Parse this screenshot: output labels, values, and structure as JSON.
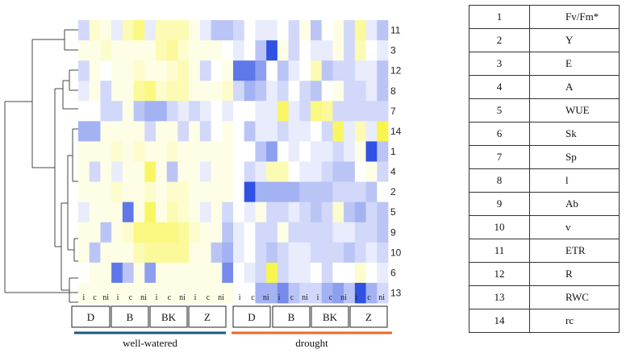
{
  "chart_data": {
    "type": "heatmap",
    "rows": [
      "11",
      "3",
      "12",
      "8",
      "7",
      "14",
      "1",
      "4",
      "2",
      "5",
      "9",
      "10",
      "6",
      "13"
    ],
    "column_sublabels": [
      "i",
      "c",
      "ni"
    ],
    "groups": [
      "D",
      "B",
      "BK",
      "Z",
      "D",
      "B",
      "BK",
      "Z"
    ],
    "conditions": [
      "well-watered",
      "drought"
    ],
    "condition_colors": [
      "#1f5a7a",
      "#e8692a"
    ],
    "color_scale": {
      "low": "#1a3ee0",
      "mid": "#ffffff",
      "high": "#f5f000"
    },
    "values": [
      [
        -0.2,
        0.2,
        0.1,
        -0.1,
        0.3,
        0.5,
        -0.1,
        0.3,
        0.3,
        0.3,
        0.1,
        -0.1,
        -0.3,
        -0.3,
        -0.2,
        0.0,
        -0.1,
        -0.1,
        0.0,
        -0.2,
        0.1,
        -0.3,
        0.0,
        0.1,
        -0.2,
        0.4,
        -0.1,
        -0.3
      ],
      [
        0.1,
        0.1,
        0.2,
        0.1,
        0.1,
        0.1,
        0.1,
        0.3,
        0.4,
        0.2,
        0.1,
        0.1,
        0.1,
        0.0,
        -0.1,
        0.0,
        -0.3,
        -0.9,
        0.1,
        -0.2,
        0.0,
        -0.1,
        -0.1,
        0.1,
        -0.2,
        0.3,
        0.0,
        -0.1
      ],
      [
        -0.2,
        0.1,
        0.0,
        0.1,
        0.1,
        0.2,
        0.1,
        0.1,
        0.2,
        0.3,
        0.1,
        -0.2,
        0.0,
        0.1,
        -0.7,
        -0.7,
        -0.5,
        0.0,
        -0.3,
        -0.1,
        0.0,
        0.3,
        -0.3,
        -0.2,
        -0.2,
        -0.1,
        -0.1,
        -0.3
      ],
      [
        -0.1,
        0.1,
        -0.2,
        0.1,
        0.1,
        0.4,
        0.5,
        0.2,
        0.3,
        0.3,
        0.1,
        0.1,
        0.1,
        0.2,
        -0.2,
        -0.4,
        -0.3,
        -0.1,
        -0.2,
        0.0,
        -0.2,
        -0.3,
        0.0,
        0.1,
        -0.2,
        -0.2,
        -0.1,
        -0.3
      ],
      [
        0.0,
        0.0,
        -0.2,
        -0.2,
        0.1,
        -0.3,
        -0.4,
        -0.4,
        -0.2,
        -0.1,
        -0.2,
        -0.1,
        0.0,
        -0.1,
        0.0,
        0.0,
        -0.1,
        -0.1,
        0.6,
        -0.1,
        -0.2,
        0.5,
        0.4,
        -0.2,
        -0.2,
        -0.2,
        -0.2,
        -0.2
      ],
      [
        -0.4,
        -0.4,
        0.1,
        0.1,
        0.1,
        0.1,
        -0.2,
        0.1,
        0.1,
        -0.2,
        0.1,
        -0.2,
        0.0,
        0.1,
        0.0,
        -0.3,
        -0.1,
        -0.1,
        -0.2,
        -0.1,
        -0.1,
        0.0,
        -0.2,
        0.6,
        -0.1,
        0.3,
        -0.1,
        0.7
      ],
      [
        0.1,
        0.1,
        0.1,
        0.2,
        0.1,
        0.2,
        0.1,
        0.1,
        0.2,
        0.1,
        0.1,
        0.1,
        0.1,
        0.1,
        0.0,
        0.0,
        -0.3,
        -0.5,
        0.0,
        -0.1,
        0.0,
        -0.1,
        -0.1,
        -0.2,
        -0.1,
        0.1,
        -0.9,
        -0.3
      ],
      [
        0.1,
        -0.2,
        0.1,
        -0.1,
        0.1,
        0.1,
        0.6,
        0.1,
        -0.3,
        0.1,
        0.1,
        -0.1,
        0.1,
        0.1,
        0.0,
        -0.2,
        -0.1,
        0.3,
        0.3,
        0.0,
        -0.1,
        -0.1,
        -0.2,
        -0.3,
        -0.3,
        0.0,
        0.1,
        -0.2
      ],
      [
        0.1,
        0.1,
        0.1,
        0.2,
        0.1,
        0.1,
        0.2,
        0.1,
        0.2,
        0.2,
        0.1,
        0.1,
        0.1,
        0.1,
        0.0,
        -0.9,
        -0.4,
        -0.4,
        -0.4,
        -0.4,
        -0.3,
        -0.3,
        -0.3,
        -0.2,
        -0.2,
        -0.2,
        -0.3,
        0.0
      ],
      [
        -0.1,
        0.1,
        0.1,
        0.1,
        -0.7,
        0.1,
        0.6,
        0.1,
        0.3,
        0.2,
        0.1,
        -0.1,
        0.1,
        -0.2,
        0.0,
        -0.1,
        0.1,
        -0.2,
        -0.2,
        -0.1,
        -0.2,
        -0.3,
        -0.2,
        0.2,
        -0.3,
        -0.4,
        -0.2,
        -0.3
      ],
      [
        0.1,
        0.1,
        -0.3,
        0.1,
        0.2,
        0.5,
        0.5,
        0.5,
        0.5,
        0.4,
        0.2,
        0.1,
        0.1,
        -0.3,
        -0.1,
        0.0,
        -0.2,
        -0.2,
        0.1,
        -0.2,
        -0.2,
        -0.2,
        -0.2,
        -0.1,
        -0.1,
        -0.2,
        -0.2,
        -0.3
      ],
      [
        0.1,
        -0.3,
        0.1,
        0.1,
        0.1,
        0.3,
        0.4,
        0.4,
        0.4,
        0.4,
        0.1,
        0.1,
        -0.3,
        -0.4,
        -0.1,
        0.0,
        -0.2,
        -0.3,
        -0.2,
        -0.1,
        -0.1,
        -0.2,
        -0.2,
        -0.2,
        -0.3,
        -0.2,
        -0.1,
        -0.2
      ],
      [
        0.0,
        0.1,
        0.1,
        -0.7,
        -0.3,
        0.1,
        -0.5,
        0.1,
        0.1,
        0.1,
        0.1,
        0.1,
        0.1,
        -0.6,
        0.0,
        -0.1,
        -0.2,
        0.7,
        -0.2,
        -0.1,
        -0.1,
        0.0,
        -0.2,
        0.0,
        0.0,
        0.2,
        0.0,
        -0.1
      ],
      [
        0.1,
        0.1,
        0.1,
        0.1,
        0.1,
        0.1,
        0.1,
        0.1,
        0.1,
        0.1,
        0.1,
        0.1,
        0.1,
        0.1,
        0.0,
        0.0,
        -0.4,
        -0.4,
        -0.6,
        -0.3,
        -0.2,
        -0.2,
        -0.4,
        -0.5,
        -0.3,
        -0.9,
        -0.4,
        -0.2
      ]
    ]
  },
  "legend": [
    {
      "num": "1",
      "name": "Fv/Fm*"
    },
    {
      "num": "2",
      "name": "Y"
    },
    {
      "num": "3",
      "name": "E"
    },
    {
      "num": "4",
      "name": "A"
    },
    {
      "num": "5",
      "name": "WUE"
    },
    {
      "num": "6",
      "name": "Sk"
    },
    {
      "num": "7",
      "name": "Sp"
    },
    {
      "num": "8",
      "name": "l"
    },
    {
      "num": "9",
      "name": "Ab"
    },
    {
      "num": "10",
      "name": "v"
    },
    {
      "num": "11",
      "name": "ETR"
    },
    {
      "num": "12",
      "name": "R"
    },
    {
      "num": "13",
      "name": "RWC"
    },
    {
      "num": "14",
      "name": "rc"
    }
  ]
}
